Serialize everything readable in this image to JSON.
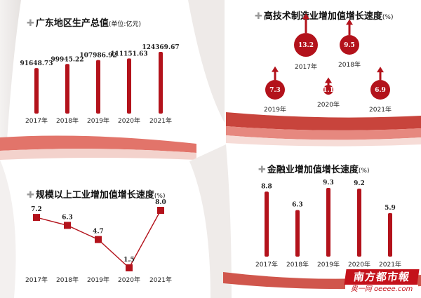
{
  "panels": {
    "gdp": {
      "title": "广东地区生产总值",
      "unit": "(单位:亿元)"
    },
    "hitech": {
      "title": "高技术制造业增加值增长速度",
      "unit": "(%)"
    },
    "industry": {
      "title": "规模以上工业增加值增长速度",
      "unit": "(%)"
    },
    "finance": {
      "title": "金融业增加值增长速度",
      "unit": "(%)"
    }
  },
  "chart_data": [
    {
      "type": "bar",
      "title": "广东地区生产总值(单位:亿元)",
      "categories": [
        "2017年",
        "2018年",
        "2019年",
        "2020年",
        "2021年"
      ],
      "values": [
        91648.73,
        99945.22,
        107986.92,
        111151.63,
        124369.67
      ],
      "value_labels": [
        "91648.73",
        "99945.22",
        "107986.92",
        "111151.63",
        "124369.67"
      ],
      "color": "#b3121b"
    },
    {
      "type": "scatter",
      "title": "高技术制造业增加值增长速度(%)",
      "categories": [
        "2017年",
        "2018年",
        "2019年",
        "2020年",
        "2021年"
      ],
      "values": [
        13.2,
        9.5,
        7.3,
        1.1,
        6.9
      ],
      "value_labels": [
        "13.2",
        "9.5",
        "7.3",
        "1.1",
        "6.9"
      ],
      "color": "#b3121b"
    },
    {
      "type": "line",
      "title": "规模以上工业增加值增长速度(%)",
      "categories": [
        "2017年",
        "2018年",
        "2019年",
        "2020年",
        "2021年"
      ],
      "values": [
        7.2,
        6.3,
        4.7,
        1.5,
        8.0
      ],
      "value_labels": [
        "7.2",
        "6.3",
        "4.7",
        "1.5",
        "8.0"
      ],
      "color": "#b3121b"
    },
    {
      "type": "bar",
      "title": "金融业增加值增长速度(%)",
      "categories": [
        "2017年",
        "2018年",
        "2019年",
        "2020年",
        "2021年"
      ],
      "values": [
        8.8,
        6.3,
        9.3,
        9.2,
        5.9
      ],
      "value_labels": [
        "8.8",
        "6.3",
        "9.3",
        "9.2",
        "5.9"
      ],
      "color": "#b3121b"
    }
  ],
  "logo": {
    "name": "南方都市報",
    "site": "奥一网 oeeee.com"
  },
  "colors": {
    "red": "#b3121b",
    "band": "#d9534a",
    "shade": "#e8e4e2"
  }
}
